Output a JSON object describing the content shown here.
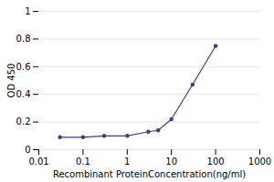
{
  "chart_data": {
    "type": "line",
    "x": [
      0.03,
      0.1,
      0.3,
      1,
      3,
      5,
      10,
      30,
      100
    ],
    "values": [
      0.09,
      0.09,
      0.1,
      0.1,
      0.13,
      0.14,
      0.22,
      0.47,
      0.75
    ],
    "color": "#3A3D8F",
    "marker": "circle",
    "xlabel": "Recombinant ProteinConcentration(ng/ml)",
    "ylabel": "OD 450",
    "log": "x",
    "xlim": [
      0.01,
      1000
    ],
    "xticks": [
      0.01,
      0.1,
      1,
      10,
      100,
      1000
    ],
    "ylim": [
      0,
      1
    ],
    "yticks": [
      0,
      0.2,
      0.4,
      0.6,
      0.8,
      1
    ],
    "grid": "y"
  }
}
